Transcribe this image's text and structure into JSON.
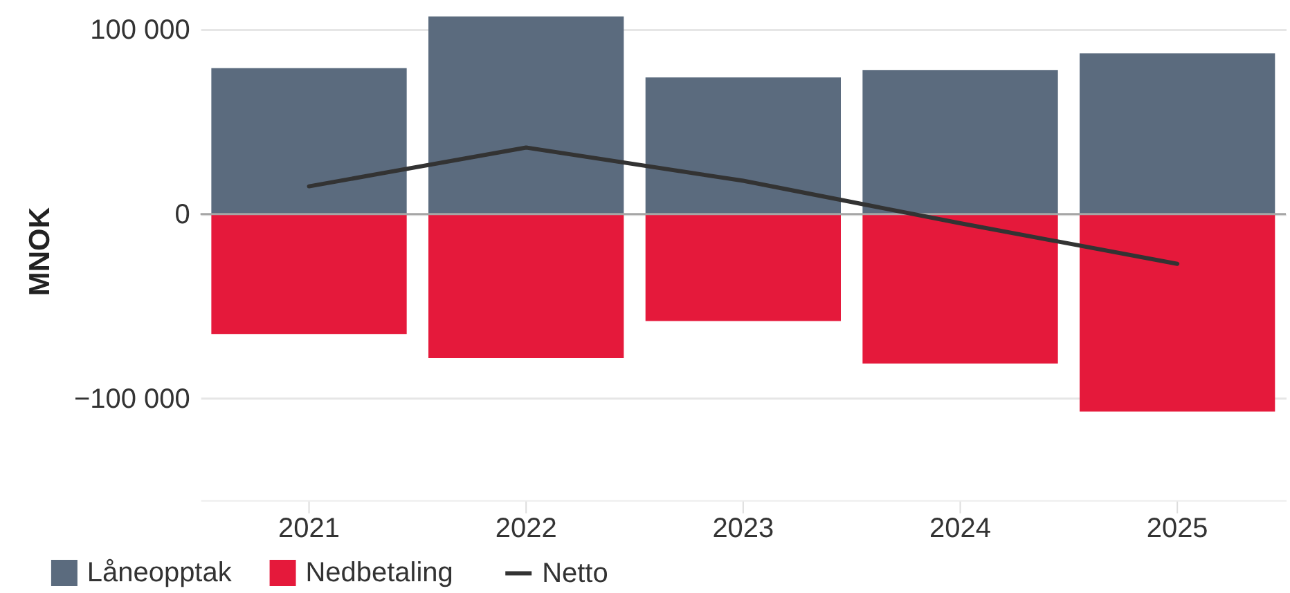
{
  "chart_data": {
    "type": "bar",
    "ylabel": "MNOK",
    "categories": [
      "2021",
      "2022",
      "2023",
      "2024",
      "2025"
    ],
    "stacked": true,
    "series": [
      {
        "name": "Låneopptak",
        "color": "#5b6b7e",
        "values": [
          79000,
          107000,
          74000,
          78000,
          87000
        ]
      },
      {
        "name": "Nedbetaling",
        "color": "#e5193b",
        "values": [
          -65000,
          -78000,
          -58000,
          -81000,
          -107000
        ]
      },
      {
        "name": "Netto",
        "type": "line",
        "color": "#333333",
        "values": [
          15000,
          36000,
          18000,
          -5000,
          -27000
        ]
      }
    ],
    "ylim": [
      -155000,
      115000
    ],
    "yticks": [
      {
        "value": -100000,
        "label": "−100 000"
      },
      0,
      {
        "value": 100000,
        "label": "100 000"
      }
    ],
    "grid": "y",
    "legend": "bottom",
    "ref_lines": [
      {
        "axis": "y",
        "value": 0,
        "color": "#a6a6a6"
      }
    ],
    "line_style": "solid"
  }
}
